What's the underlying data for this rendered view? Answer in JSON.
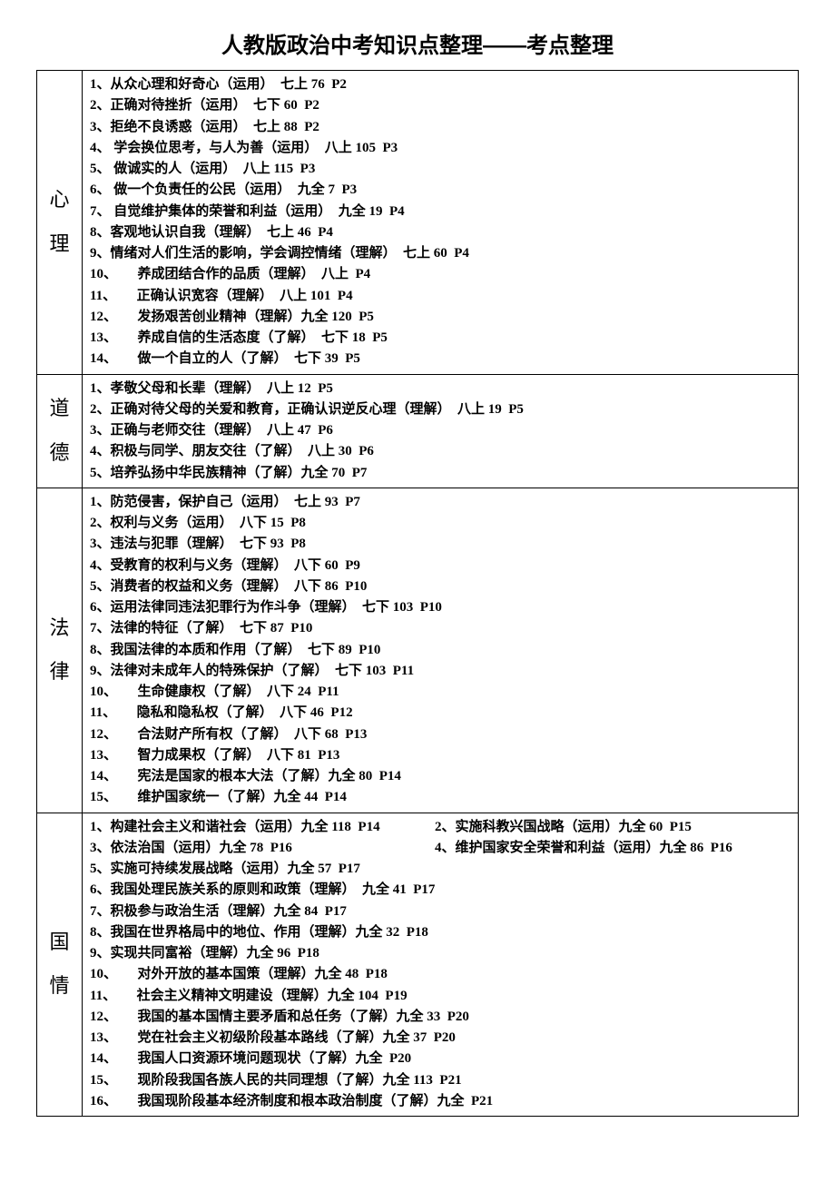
{
  "title": "人教版政治中考知识点整理——考点整理",
  "sections": [
    {
      "category": "心理",
      "items": [
        "1、从众心理和好奇心（运用）  七上 76  P2",
        "2、正确对待挫折（运用）  七下 60  P2",
        "3、拒绝不良诱惑（运用）  七上 88  P2",
        "4、 学会换位思考，与人为善（运用）  八上 105  P3",
        "5、 做诚实的人（运用）  八上 115  P3",
        "6、 做一个负责任的公民（运用）  九全 7  P3",
        "7、 自觉维护集体的荣誉和利益（运用）  九全 19  P4",
        "8、客观地认识自我（理解）  七上 46  P4",
        "9、情绪对人们生活的影响，学会调控情绪（理解）  七上 60  P4",
        "10、      养成团结合作的品质（理解）  八上  P4",
        "11、      正确认识宽容（理解）  八上 101  P4",
        "12、      发扬艰苦创业精神（理解）九全 120  P5",
        "13、      养成自信的生活态度（了解）  七下 18  P5",
        "14、      做一个自立的人（了解）  七下 39  P5"
      ]
    },
    {
      "category": "道德",
      "items": [
        "1、孝敬父母和长辈（理解）  八上 12  P5",
        "2、正确对待父母的关爱和教育，正确认识逆反心理（理解）  八上 19  P5",
        "3、正确与老师交往（理解）  八上 47  P6",
        "4、积极与同学、朋友交往（了解）  八上 30  P6",
        "5、培养弘扬中华民族精神（了解）九全 70  P7"
      ]
    },
    {
      "category": "法律",
      "items": [
        "1、防范侵害，保护自己（运用）  七上 93  P7",
        "2、权利与义务（运用）  八下 15  P8",
        "3、违法与犯罪（理解）  七下 93  P8",
        "4、受教育的权利与义务（理解）  八下 60  P9",
        "5、消费者的权益和义务（理解）  八下 86  P10",
        "6、运用法律同违法犯罪行为作斗争（理解）  七下 103  P10",
        "7、法律的特征（了解）  七下 87  P10",
        "8、我国法律的本质和作用（了解）  七下 89  P10",
        "9、法律对未成年人的特殊保护（了解）  七下 103  P11",
        "10、      生命健康权（了解）  八下 24  P11",
        "11、      隐私和隐私权（了解）  八下 46  P12",
        "12、      合法财产所有权（了解）  八下 68  P13",
        "13、      智力成果权（了解）  八下 81  P13",
        "14、      宪法是国家的根本大法（了解）九全 80  P14",
        "15、      维护国家统一（了解）九全 44  P14"
      ]
    },
    {
      "category": "国情",
      "items_inline": [
        [
          "1、构建社会主义和谐社会（运用）九全 118  P14",
          "2、实施科教兴国战略（运用）九全 60  P15"
        ],
        [
          "3、依法治国（运用）九全 78  P16",
          "4、维护国家安全荣誉和利益（运用）九全 86  P16"
        ]
      ],
      "items": [
        "5、实施可持续发展战略（运用）九全 57  P17",
        "6、我国处理民族关系的原则和政策（理解）  九全 41  P17",
        "7、积极参与政治生活（理解）九全 84  P17",
        "8、我国在世界格局中的地位、作用（理解）九全 32  P18",
        "9、实现共同富裕（理解）九全 96  P18",
        "10、      对外开放的基本国策（理解）九全 48  P18",
        "11、      社会主义精神文明建设（理解）九全 104  P19",
        "12、      我国的基本国情主要矛盾和总任务（了解）九全 33  P20",
        "13、      党在社会主义初级阶段基本路线（了解）九全 37  P20",
        "14、      我国人口资源环境问题现状（了解）九全  P20",
        "15、      现阶段我国各族人民的共同理想（了解）九全 113  P21",
        "16、      我国现阶段基本经济制度和根本政治制度（了解）九全  P21"
      ]
    }
  ]
}
